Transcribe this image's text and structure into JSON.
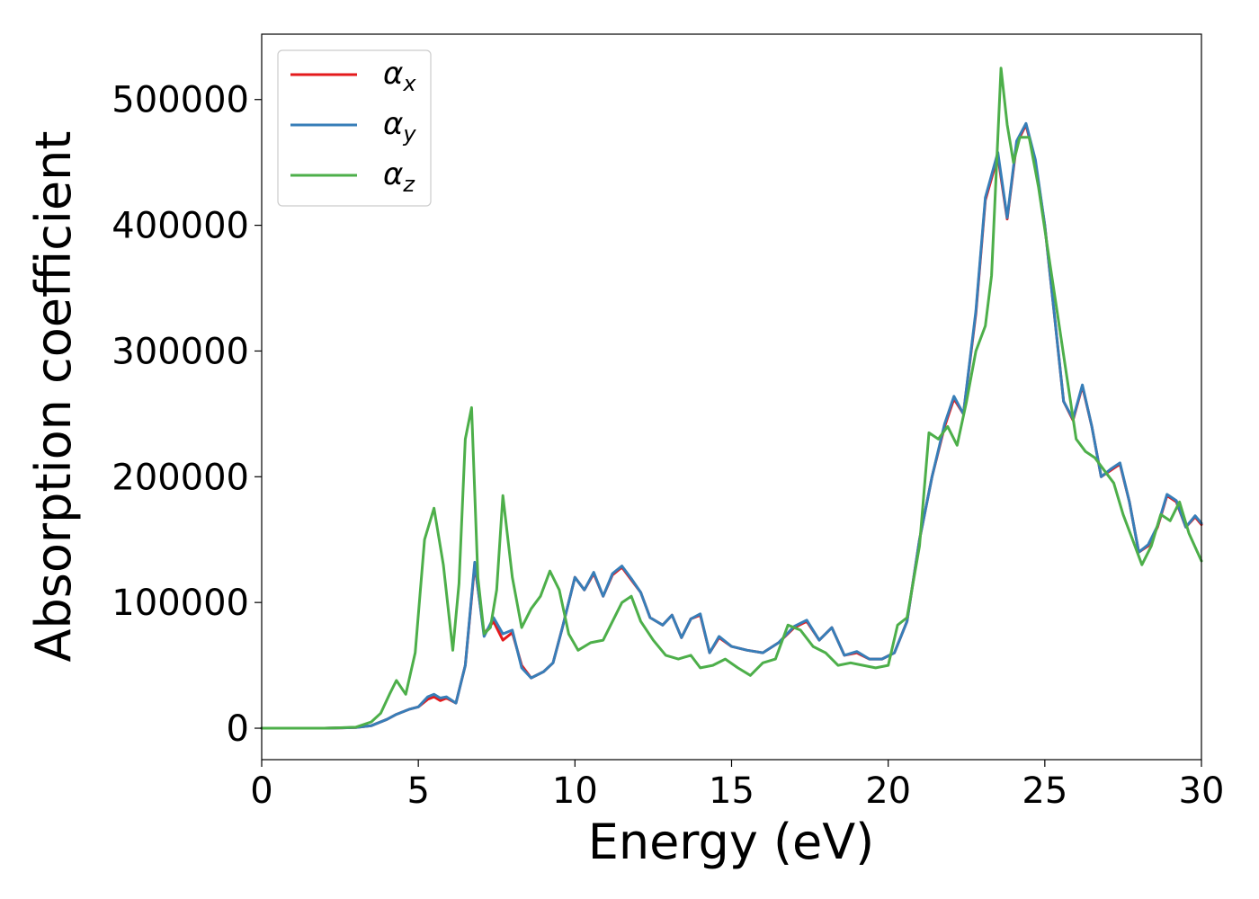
{
  "chart_data": {
    "type": "line",
    "title": "",
    "xlabel": "Energy (eV)",
    "ylabel": "Absorption coefficient",
    "xlim": [
      0,
      30
    ],
    "ylim": [
      -25000,
      552000
    ],
    "xticks": [
      0,
      5,
      10,
      15,
      20,
      25,
      30
    ],
    "yticks": [
      0,
      100000,
      200000,
      300000,
      400000,
      500000
    ],
    "xtick_labels": [
      "0",
      "5",
      "10",
      "15",
      "20",
      "25",
      "30"
    ],
    "ytick_labels": [
      "0",
      "100000",
      "200000",
      "300000",
      "400000",
      "500000"
    ],
    "grid": false,
    "legend_position": "top-left",
    "series": [
      {
        "name": "α_x",
        "label_main": "α",
        "label_sub": "x",
        "color": "#e41a1c",
        "x": [
          0,
          2,
          3,
          3.5,
          4,
          4.3,
          4.7,
          5,
          5.3,
          5.5,
          5.7,
          5.9,
          6.2,
          6.5,
          6.8,
          7.1,
          7.4,
          7.7,
          8,
          8.3,
          8.6,
          9,
          9.3,
          9.6,
          10,
          10.3,
          10.6,
          10.9,
          11.2,
          11.5,
          11.8,
          12.1,
          12.4,
          12.8,
          13.1,
          13.4,
          13.7,
          14,
          14.3,
          14.6,
          15,
          15.5,
          16,
          16.5,
          17,
          17.4,
          17.8,
          18.2,
          18.6,
          19,
          19.4,
          19.8,
          20.2,
          20.6,
          21,
          21.4,
          21.8,
          22.1,
          22.4,
          22.8,
          23.1,
          23.5,
          23.8,
          24.1,
          24.4,
          24.7,
          25,
          25.3,
          25.6,
          25.9,
          26.2,
          26.5,
          26.8,
          27.1,
          27.4,
          27.7,
          28,
          28.3,
          28.6,
          28.9,
          29.2,
          29.5,
          29.8,
          30
        ],
        "y": [
          0,
          0,
          500,
          2000,
          7000,
          11000,
          15000,
          17000,
          23000,
          25000,
          22000,
          24000,
          20000,
          50000,
          130000,
          75000,
          85000,
          70000,
          76000,
          50000,
          40000,
          45000,
          52000,
          80000,
          120000,
          110000,
          123000,
          105000,
          122000,
          128000,
          118000,
          108000,
          88000,
          82000,
          90000,
          72000,
          87000,
          90000,
          60000,
          72000,
          65000,
          62000,
          60000,
          68000,
          80000,
          85000,
          70000,
          80000,
          58000,
          60000,
          55000,
          55000,
          60000,
          85000,
          150000,
          200000,
          240000,
          262000,
          250000,
          330000,
          420000,
          455000,
          405000,
          465000,
          480000,
          450000,
          400000,
          330000,
          260000,
          245000,
          272000,
          240000,
          200000,
          205000,
          210000,
          180000,
          140000,
          145000,
          160000,
          185000,
          180000,
          160000,
          168000,
          162000
        ]
      },
      {
        "name": "α_y",
        "label_main": "α",
        "label_sub": "y",
        "color": "#377eb8",
        "x": [
          0,
          2,
          3,
          3.5,
          4,
          4.3,
          4.7,
          5,
          5.3,
          5.5,
          5.7,
          5.9,
          6.2,
          6.5,
          6.8,
          7.1,
          7.4,
          7.7,
          8,
          8.3,
          8.6,
          9,
          9.3,
          9.6,
          10,
          10.3,
          10.6,
          10.9,
          11.2,
          11.5,
          11.8,
          12.1,
          12.4,
          12.8,
          13.1,
          13.4,
          13.7,
          14,
          14.3,
          14.6,
          15,
          15.5,
          16,
          16.5,
          17,
          17.4,
          17.8,
          18.2,
          18.6,
          19,
          19.4,
          19.8,
          20.2,
          20.6,
          21,
          21.4,
          21.8,
          22.1,
          22.4,
          22.8,
          23.1,
          23.5,
          23.8,
          24.1,
          24.4,
          24.7,
          25,
          25.3,
          25.6,
          25.9,
          26.2,
          26.5,
          26.8,
          27.1,
          27.4,
          27.7,
          28,
          28.3,
          28.6,
          28.9,
          29.2,
          29.5,
          29.8,
          30
        ],
        "y": [
          0,
          0,
          500,
          2000,
          7000,
          11000,
          15000,
          17000,
          25000,
          27000,
          24000,
          25000,
          20000,
          50000,
          132000,
          73000,
          88000,
          75000,
          78000,
          48000,
          40000,
          45000,
          52000,
          80000,
          120000,
          110000,
          124000,
          105000,
          123000,
          129000,
          119000,
          108000,
          88000,
          82000,
          90000,
          72000,
          87000,
          91000,
          60000,
          73000,
          65000,
          62000,
          60000,
          68000,
          81000,
          86000,
          70000,
          80000,
          58000,
          61000,
          55000,
          55000,
          60000,
          85000,
          150000,
          200000,
          242000,
          264000,
          250000,
          332000,
          422000,
          458000,
          406000,
          467000,
          481000,
          452000,
          400000,
          330000,
          260000,
          246000,
          273000,
          240000,
          200000,
          206000,
          211000,
          180000,
          140000,
          146000,
          161000,
          186000,
          181000,
          160000,
          169000,
          163000
        ]
      },
      {
        "name": "α_z",
        "label_main": "α",
        "label_sub": "z",
        "color": "#4daf4a",
        "x": [
          0,
          2,
          3,
          3.5,
          3.8,
          4.1,
          4.3,
          4.6,
          4.9,
          5.2,
          5.5,
          5.8,
          6.1,
          6.3,
          6.5,
          6.7,
          6.9,
          7.1,
          7.3,
          7.5,
          7.7,
          8,
          8.3,
          8.6,
          8.9,
          9.2,
          9.5,
          9.8,
          10.1,
          10.5,
          10.9,
          11.2,
          11.5,
          11.8,
          12.1,
          12.5,
          12.9,
          13.3,
          13.7,
          14,
          14.4,
          14.8,
          15.2,
          15.6,
          16,
          16.4,
          16.8,
          17.2,
          17.6,
          18,
          18.4,
          18.8,
          19.2,
          19.6,
          20,
          20.3,
          20.6,
          21,
          21.3,
          21.6,
          21.9,
          22.2,
          22.5,
          22.8,
          23.1,
          23.3,
          23.6,
          23.8,
          24,
          24.2,
          24.5,
          24.8,
          25.1,
          25.4,
          25.7,
          26,
          26.3,
          26.6,
          26.9,
          27.2,
          27.5,
          27.8,
          28.1,
          28.4,
          28.7,
          29,
          29.3,
          29.6,
          30
        ],
        "y": [
          0,
          0,
          800,
          5000,
          12000,
          28000,
          38000,
          27000,
          60000,
          150000,
          175000,
          130000,
          62000,
          115000,
          230000,
          255000,
          120000,
          75000,
          80000,
          110000,
          185000,
          120000,
          80000,
          95000,
          105000,
          125000,
          110000,
          75000,
          62000,
          68000,
          70000,
          85000,
          100000,
          105000,
          85000,
          70000,
          58000,
          55000,
          58000,
          48000,
          50000,
          55000,
          48000,
          42000,
          52000,
          55000,
          82000,
          78000,
          65000,
          60000,
          50000,
          52000,
          50000,
          48000,
          50000,
          82000,
          88000,
          145000,
          235000,
          230000,
          240000,
          225000,
          260000,
          300000,
          320000,
          360000,
          525000,
          480000,
          450000,
          470000,
          470000,
          430000,
          380000,
          330000,
          280000,
          230000,
          220000,
          215000,
          205000,
          195000,
          170000,
          150000,
          130000,
          145000,
          170000,
          165000,
          180000,
          155000,
          133000
        ]
      }
    ]
  }
}
